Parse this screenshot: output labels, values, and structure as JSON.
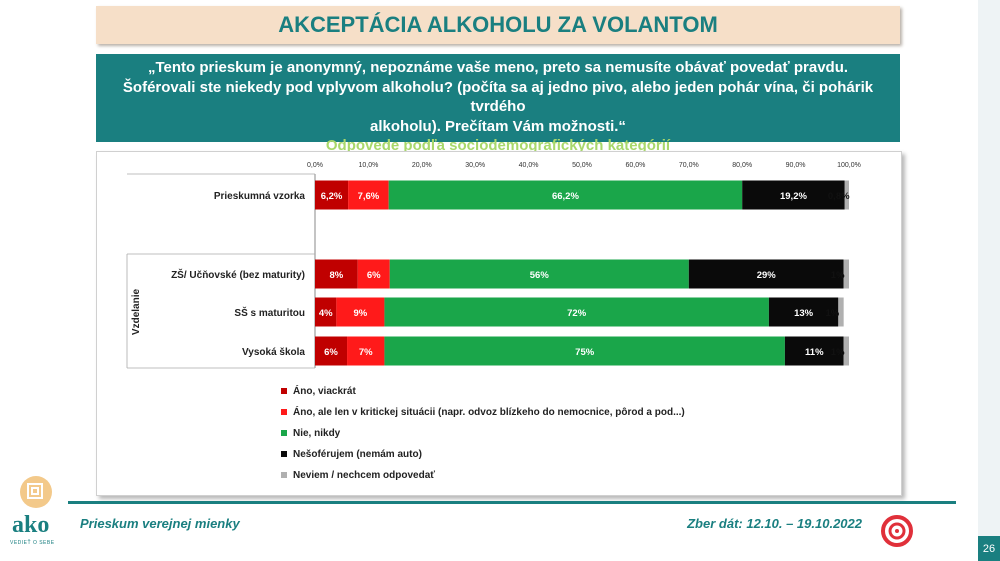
{
  "header": {
    "title": "AKCEPTÁCIA ALKOHOLU ZA VOLANTOM"
  },
  "question": {
    "line1": "„Tento prieskum je anonymný, nepoznáme vaše meno, preto sa nemusíte obávať povedať pravdu.",
    "line2": "Šoférovali ste niekedy pod vplyvom alkoholu? (počíta sa aj jedno pivo, alebo jeden pohár vína, či pohárik tvrdého",
    "line3": "alkoholu). Prečítam Vám možnosti.“",
    "subtitle": "Odpovede podľa sociodemografických kategórií"
  },
  "chart_data": {
    "type": "bar",
    "orientation": "horizontal-stacked",
    "xlim": [
      0,
      100
    ],
    "xticks": [
      "0,0%",
      "10,0%",
      "20,0%",
      "30,0%",
      "40,0%",
      "50,0%",
      "60,0%",
      "70,0%",
      "80,0%",
      "90,0%",
      "100,0%"
    ],
    "group_label": "Vzdelanie",
    "categories": [
      "Prieskumná vzorka",
      "ZŠ/ Učňovské (bez maturity)",
      "SŠ s maturitou",
      "Vysoká škola"
    ],
    "series": [
      {
        "name": "Áno, viackrát",
        "color": "#c00000",
        "values": [
          6.2,
          8,
          4,
          6
        ],
        "labels": [
          "6,2%",
          "8%",
          "4%",
          "6%"
        ]
      },
      {
        "name": "Áno, ale len v kritickej situácii (napr. odvoz blízkeho do nemocnice, pôrod a pod...)",
        "color": "#ff1a1a",
        "values": [
          7.6,
          6,
          9,
          7
        ],
        "labels": [
          "7,6%",
          "6%",
          "9%",
          "7%"
        ]
      },
      {
        "name": "Nie, nikdy",
        "color": "#1aa64a",
        "values": [
          66.2,
          56,
          72,
          75
        ],
        "labels": [
          "66,2%",
          "56%",
          "72%",
          "75%"
        ]
      },
      {
        "name": "Nešoférujem (nemám auto)",
        "color": "#0a0a0a",
        "values": [
          19.2,
          29,
          13,
          11
        ],
        "labels": [
          "19,2%",
          "29%",
          "13%",
          "11%"
        ]
      },
      {
        "name": "Neviem / nechcem odpovedať",
        "color": "#b0b0b0",
        "values": [
          0.8,
          1,
          1,
          1
        ],
        "labels": [
          "0,8%",
          "1%",
          "1%",
          "1%"
        ]
      }
    ]
  },
  "footer": {
    "left": "Prieskum verejnej mienky",
    "right": "Zber dát: 12.10. – 19.10.2022",
    "page": "26",
    "logo_text": "ako",
    "logo_tagline": "VEDIEŤ O SEBE"
  }
}
